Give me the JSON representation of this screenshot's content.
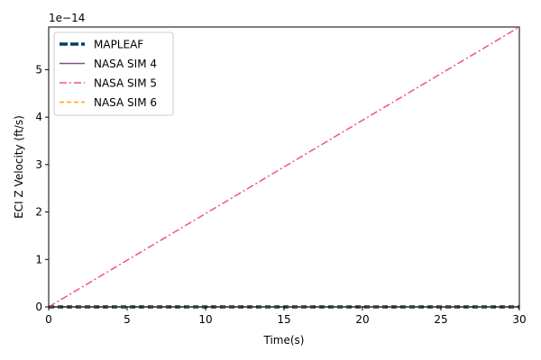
{
  "chart_data": {
    "type": "line",
    "xlabel": "Time(s)",
    "ylabel": "ECI Z Velocity (ft/s)",
    "y_offset_text": "1e−14",
    "xlim": [
      0,
      30
    ],
    "ylim": [
      0,
      5.9
    ],
    "y_scale_note": "values shown in units of 1e-14",
    "xticks": [
      0,
      5,
      10,
      15,
      20,
      25,
      30
    ],
    "yticks": [
      0,
      1,
      2,
      3,
      4,
      5
    ],
    "grid": false,
    "legend_position": "upper-left",
    "series": [
      {
        "name": "MAPLEAF",
        "color": "#003f5c",
        "style": "dashed-thick",
        "x": [
          0,
          30
        ],
        "y": [
          0,
          0
        ]
      },
      {
        "name": "NASA SIM 4",
        "color": "#7a5195",
        "style": "solid",
        "x": [
          0,
          30
        ],
        "y": [
          0,
          0
        ]
      },
      {
        "name": "NASA SIM 5",
        "color": "#ef5675",
        "style": "dashdot",
        "x": [
          0,
          30
        ],
        "y": [
          0,
          5.9
        ]
      },
      {
        "name": "NASA SIM 6",
        "color": "#ffa600",
        "style": "dashed",
        "x": [
          0,
          30
        ],
        "y": [
          0,
          0
        ]
      }
    ]
  }
}
